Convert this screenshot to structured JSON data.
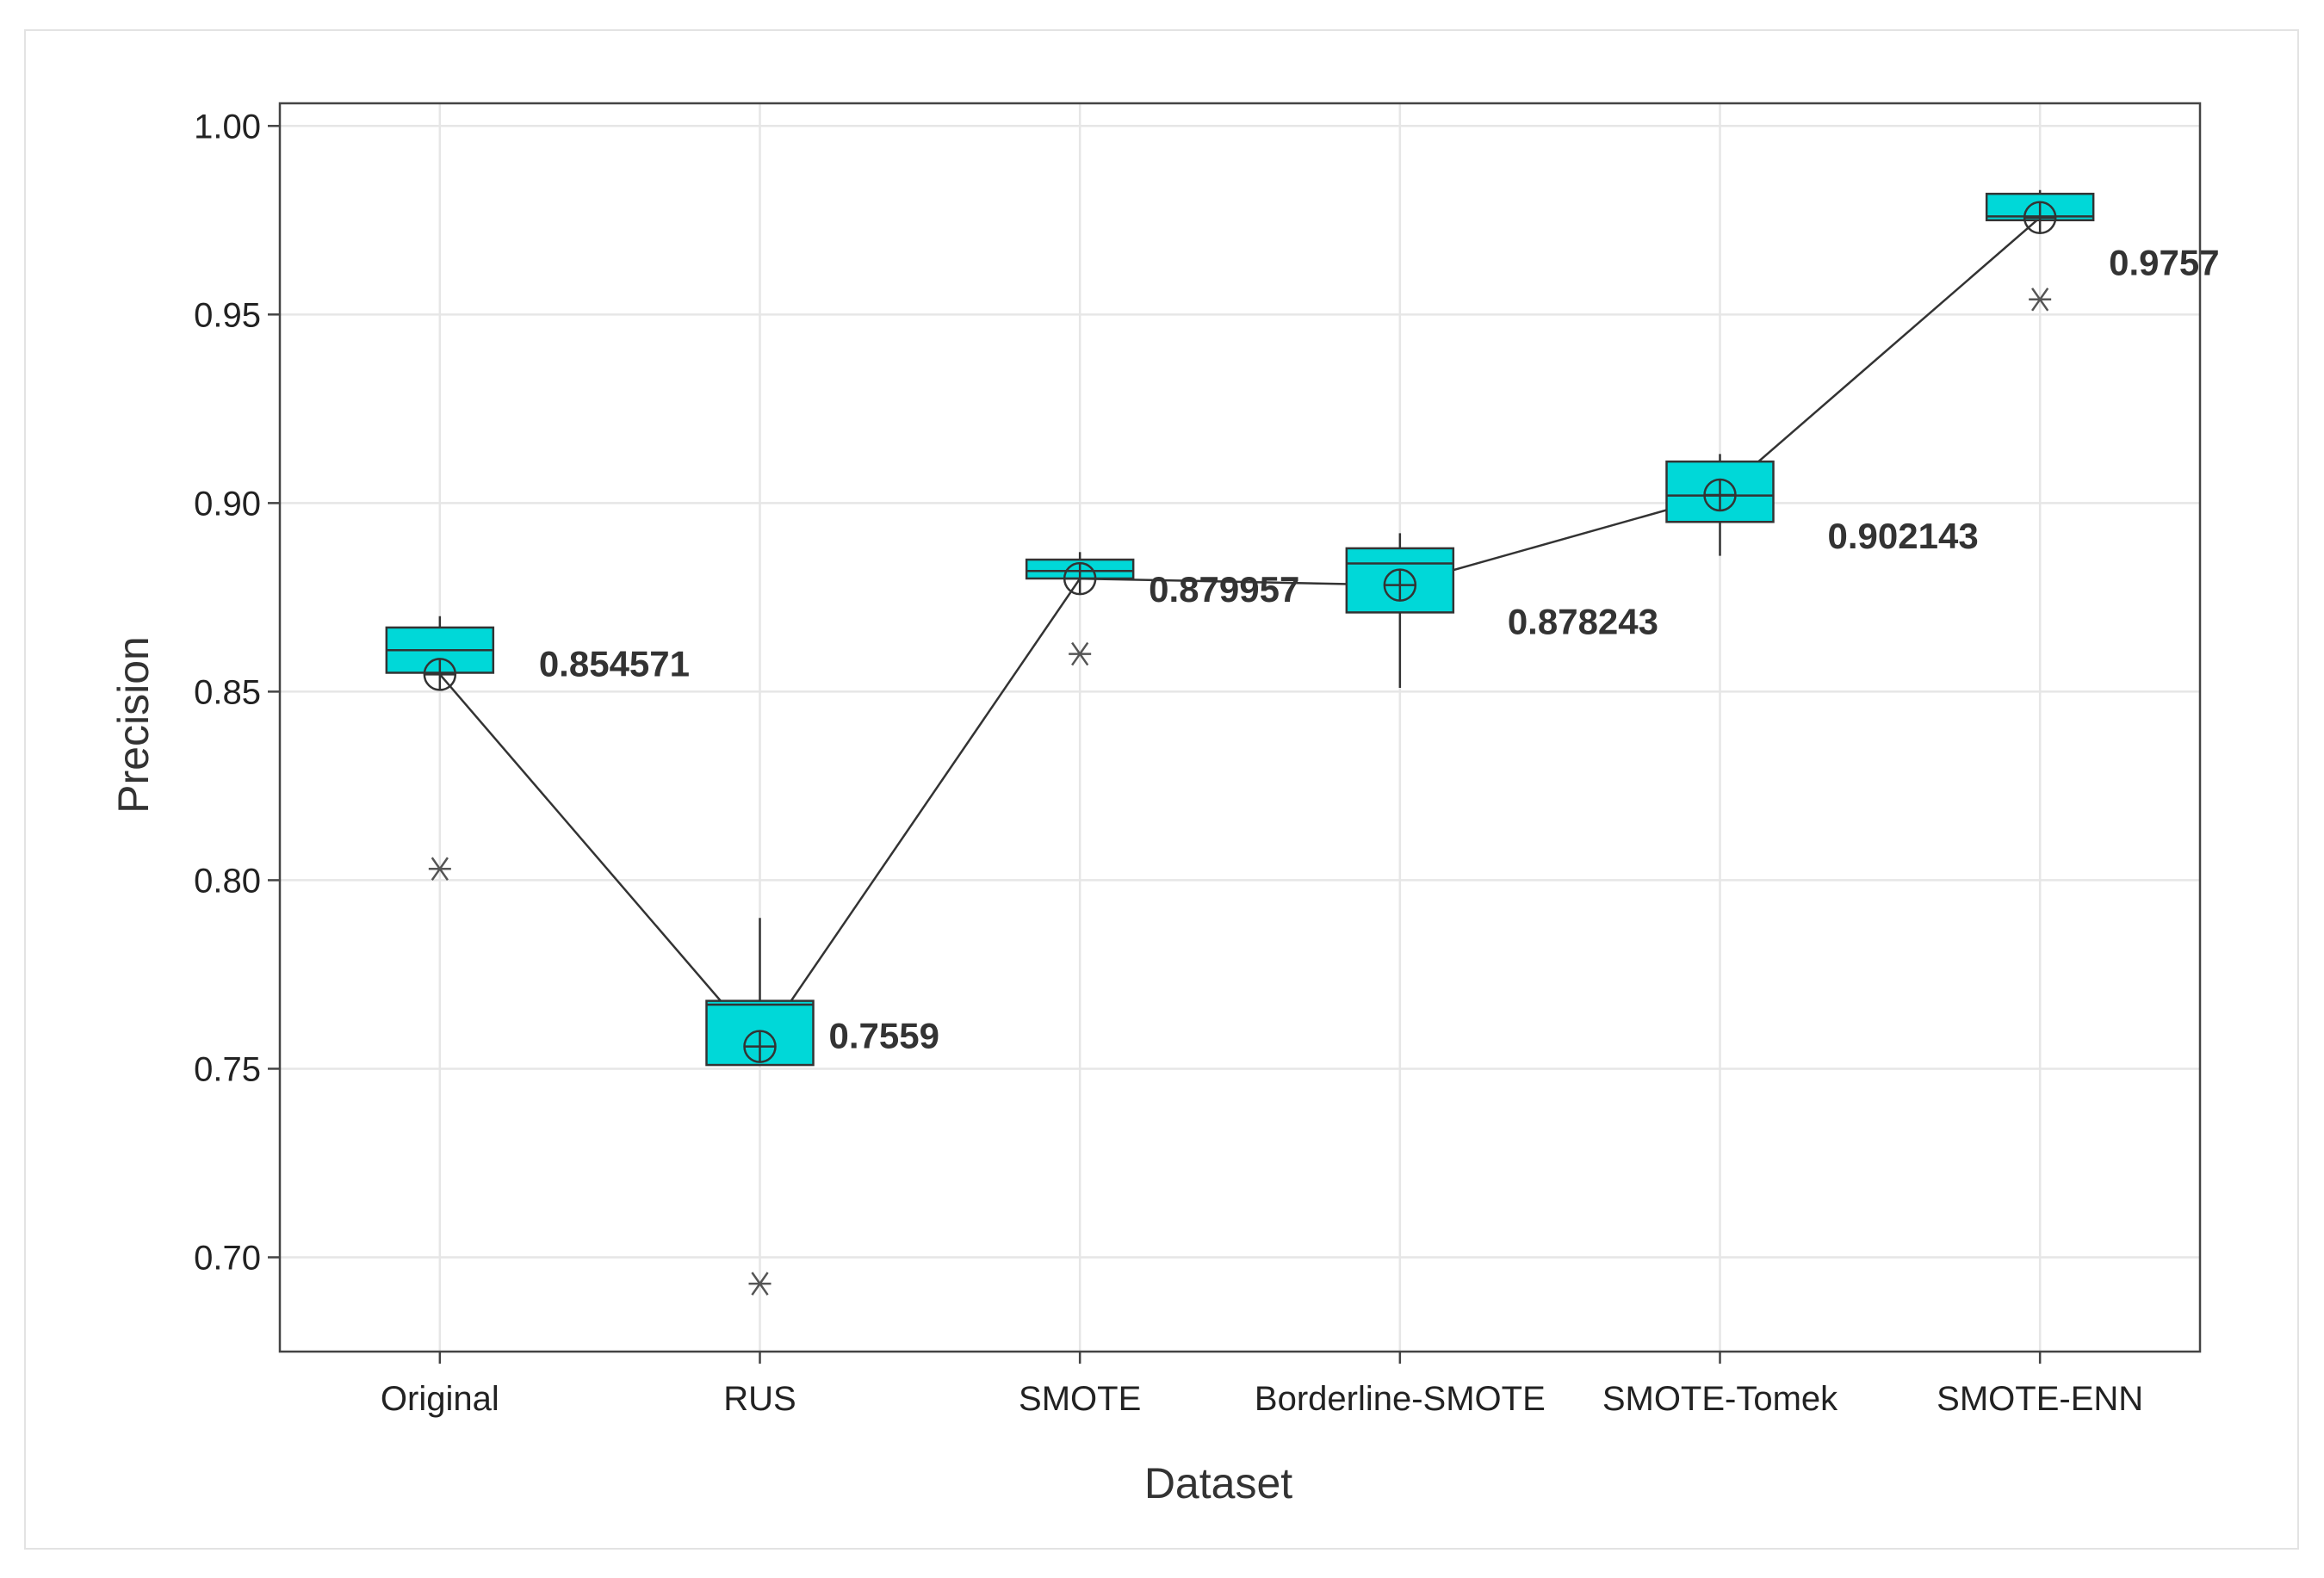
{
  "chart_data": {
    "type": "box",
    "xlabel": "Dataset",
    "ylabel": "Precision",
    "ylim": [
      0.675,
      1.006
    ],
    "yticks": [
      "0.70",
      "0.75",
      "0.80",
      "0.85",
      "0.90",
      "0.95",
      "1.00"
    ],
    "ytick_values": [
      0.7,
      0.75,
      0.8,
      0.85,
      0.9,
      0.95,
      1.0
    ],
    "grid": true,
    "box_color": "#00d8d8",
    "categories": [
      "Original",
      "RUS",
      "SMOTE",
      "Borderline-SMOTE",
      "SMOTE-Tomek",
      "SMOTE-ENN"
    ],
    "boxes": [
      {
        "whisker_low": 0.855,
        "q1": 0.855,
        "median": 0.861,
        "q3": 0.867,
        "whisker_high": 0.87,
        "mean": 0.854571,
        "outliers": [
          0.803
        ],
        "mean_label": "0.854571"
      },
      {
        "whisker_low": 0.751,
        "q1": 0.751,
        "median": 0.767,
        "q3": 0.768,
        "whisker_high": 0.79,
        "mean": 0.7559,
        "outliers": [
          0.693
        ],
        "mean_label": "0.7559"
      },
      {
        "whisker_low": 0.88,
        "q1": 0.88,
        "median": 0.882,
        "q3": 0.885,
        "whisker_high": 0.887,
        "mean": 0.879957,
        "outliers": [
          0.86
        ],
        "mean_label": "0.879957"
      },
      {
        "whisker_low": 0.851,
        "q1": 0.871,
        "median": 0.884,
        "q3": 0.888,
        "whisker_high": 0.892,
        "mean": 0.878243,
        "outliers": [],
        "mean_label": "0.878243"
      },
      {
        "whisker_low": 0.886,
        "q1": 0.895,
        "median": 0.902,
        "q3": 0.911,
        "whisker_high": 0.913,
        "mean": 0.902143,
        "outliers": [],
        "mean_label": "0.902143"
      },
      {
        "whisker_low": 0.975,
        "q1": 0.975,
        "median": 0.976,
        "q3": 0.982,
        "whisker_high": 0.983,
        "mean": 0.9757,
        "outliers": [
          0.954
        ],
        "mean_label": "0.9757"
      }
    ],
    "mean_connect_line": true
  }
}
